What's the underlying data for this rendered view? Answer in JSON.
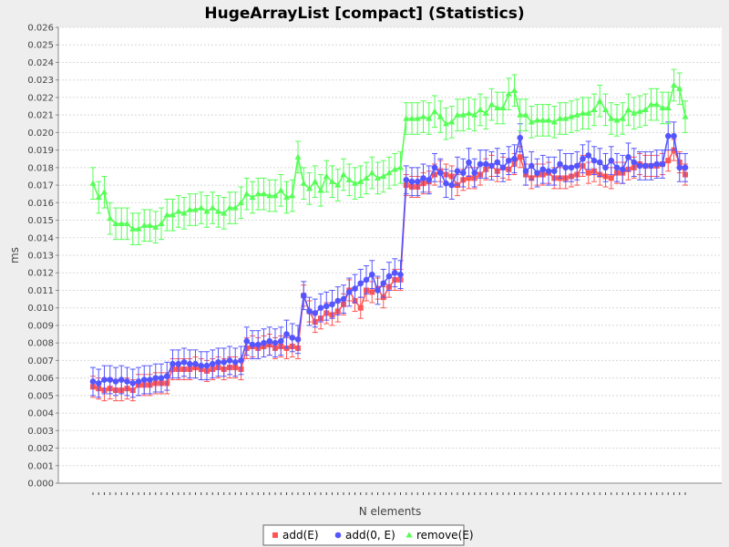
{
  "chart_data": {
    "type": "line",
    "title": "HugeArrayList [compact] (Statistics)",
    "xlabel": "N elements",
    "ylabel": "ms",
    "ylim": [
      0,
      0.026
    ],
    "ytick_step": 0.001,
    "grid": true,
    "legend_position": "bottom-center",
    "error_bars": true,
    "series": [
      {
        "name": "add(E)",
        "color": "#ff5555",
        "marker": "square",
        "error": 0.0006,
        "values": [
          0.0055,
          0.0054,
          0.0053,
          0.0054,
          0.0053,
          0.0053,
          0.0054,
          0.0053,
          0.0056,
          0.0056,
          0.0056,
          0.0057,
          0.0057,
          0.0057,
          0.0065,
          0.0065,
          0.0065,
          0.0065,
          0.0066,
          0.0065,
          0.0064,
          0.0065,
          0.0066,
          0.0065,
          0.0066,
          0.0066,
          0.0065,
          0.0077,
          0.0078,
          0.0077,
          0.0078,
          0.0079,
          0.0077,
          0.0078,
          0.0077,
          0.0078,
          0.0077,
          0.0107,
          0.0098,
          0.0092,
          0.0094,
          0.0097,
          0.0096,
          0.0098,
          0.0102,
          0.011,
          0.0104,
          0.01,
          0.011,
          0.0109,
          0.0111,
          0.0106,
          0.0112,
          0.0116,
          0.0116,
          0.017,
          0.0169,
          0.0169,
          0.0171,
          0.0172,
          0.0176,
          0.0178,
          0.0176,
          0.0175,
          0.017,
          0.0173,
          0.0174,
          0.0174,
          0.0176,
          0.0179,
          0.0181,
          0.0178,
          0.018,
          0.0179,
          0.0182,
          0.0186,
          0.0176,
          0.0174,
          0.0176,
          0.0176,
          0.0177,
          0.0174,
          0.0174,
          0.0174,
          0.0175,
          0.0176,
          0.0181,
          0.0177,
          0.0178,
          0.0176,
          0.0175,
          0.0174,
          0.0177,
          0.0177,
          0.0179,
          0.018,
          0.0182,
          0.0181,
          0.0181,
          0.0181,
          0.0182,
          0.0184,
          0.019,
          0.0183,
          0.0176
        ]
      },
      {
        "name": "add(0, E)",
        "color": "#5555ff",
        "marker": "circle",
        "error": 0.0008,
        "values": [
          0.0058,
          0.0057,
          0.0059,
          0.0059,
          0.0058,
          0.0059,
          0.0058,
          0.0057,
          0.0058,
          0.0059,
          0.0059,
          0.006,
          0.006,
          0.0061,
          0.0068,
          0.0068,
          0.0069,
          0.0068,
          0.0068,
          0.0067,
          0.0067,
          0.0068,
          0.0069,
          0.0069,
          0.007,
          0.0069,
          0.007,
          0.0081,
          0.0079,
          0.0079,
          0.008,
          0.0081,
          0.008,
          0.0081,
          0.0085,
          0.0083,
          0.0082,
          0.0107,
          0.0098,
          0.0097,
          0.01,
          0.0101,
          0.0102,
          0.0104,
          0.0105,
          0.0109,
          0.0111,
          0.0114,
          0.0116,
          0.0119,
          0.011,
          0.0114,
          0.0118,
          0.012,
          0.0119,
          0.0173,
          0.0172,
          0.0172,
          0.0174,
          0.0173,
          0.018,
          0.0177,
          0.0171,
          0.017,
          0.0178,
          0.0177,
          0.0183,
          0.0177,
          0.0182,
          0.0182,
          0.0181,
          0.0183,
          0.018,
          0.0184,
          0.0185,
          0.0197,
          0.0178,
          0.0181,
          0.0177,
          0.0179,
          0.0178,
          0.0178,
          0.0182,
          0.018,
          0.018,
          0.0181,
          0.0185,
          0.0187,
          0.0184,
          0.0183,
          0.018,
          0.0184,
          0.018,
          0.0179,
          0.0186,
          0.0183,
          0.0181,
          0.0181,
          0.0181,
          0.0182,
          0.0182,
          0.0198,
          0.0198,
          0.018,
          0.018
        ]
      },
      {
        "name": "remove(E)",
        "color": "#55ff55",
        "marker": "triangle",
        "error": 0.0009,
        "values": [
          0.0171,
          0.0163,
          0.0166,
          0.0151,
          0.0148,
          0.0148,
          0.0148,
          0.0145,
          0.0145,
          0.0147,
          0.0147,
          0.0146,
          0.0148,
          0.0153,
          0.0153,
          0.0155,
          0.0154,
          0.0156,
          0.0156,
          0.0157,
          0.0155,
          0.0157,
          0.0155,
          0.0154,
          0.0157,
          0.0157,
          0.016,
          0.0165,
          0.0163,
          0.0165,
          0.0165,
          0.0164,
          0.0164,
          0.0167,
          0.0163,
          0.0164,
          0.0186,
          0.0171,
          0.0168,
          0.0172,
          0.0167,
          0.0175,
          0.0172,
          0.017,
          0.0176,
          0.0173,
          0.0171,
          0.0172,
          0.0174,
          0.0177,
          0.0174,
          0.0175,
          0.0177,
          0.0179,
          0.018,
          0.0208,
          0.0208,
          0.0208,
          0.0209,
          0.0208,
          0.0212,
          0.0209,
          0.0205,
          0.0206,
          0.021,
          0.021,
          0.0211,
          0.021,
          0.0213,
          0.0211,
          0.0216,
          0.0214,
          0.0214,
          0.0222,
          0.0224,
          0.021,
          0.021,
          0.0206,
          0.0207,
          0.0207,
          0.0207,
          0.0206,
          0.0208,
          0.0208,
          0.0209,
          0.021,
          0.0211,
          0.0211,
          0.0213,
          0.0218,
          0.0213,
          0.0208,
          0.0207,
          0.0208,
          0.0213,
          0.0211,
          0.0212,
          0.0213,
          0.0216,
          0.0216,
          0.0214,
          0.0214,
          0.0227,
          0.0225,
          0.0209
        ]
      }
    ]
  }
}
